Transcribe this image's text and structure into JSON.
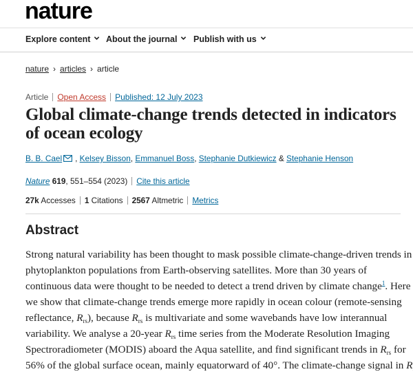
{
  "site": {
    "logo": "nature"
  },
  "nav": {
    "items": [
      {
        "label": "Explore content"
      },
      {
        "label": "About the journal"
      },
      {
        "label": "Publish with us"
      }
    ]
  },
  "breadcrumb": {
    "home": "nature",
    "section": "articles",
    "current": "article",
    "separator": "›"
  },
  "meta": {
    "type": "Article",
    "access": "Open Access",
    "published": "Published: 12 July 2023"
  },
  "title": "Global climate-change trends detected in indicators of ocean ecology",
  "authors": {
    "list": [
      "B. B. Cael",
      "Kelsey Bisson",
      "Emmanuel Boss",
      "Stephanie Dutkiewicz",
      "Stephanie Henson"
    ],
    "separator": ",",
    "conjunction": "&"
  },
  "citation": {
    "journal": "Nature",
    "volume": "619",
    "pages": ", 551–554 (2023)",
    "cite_link": "Cite this article"
  },
  "metrics": {
    "accesses_value": "27k",
    "accesses_label": "Accesses",
    "citations_value": "1",
    "citations_label": "Citations",
    "altmetric_value": "2567",
    "altmetric_label": "Altmetric",
    "metrics_link": "Metrics"
  },
  "abstract": {
    "heading": "Abstract",
    "line1": "Strong natural variability has been thought to mask possible climate-change-driven trends in",
    "line2": "phytoplankton populations from Earth-observing satellites. More than 30 years of",
    "line3a": "continuous data were thought to be needed to detect a trend driven by climate change",
    "ref1": "1",
    "line3b": ". Here",
    "line4": "we show that climate-change trends emerge more rapidly in ocean colour (remote-sensing",
    "line5a": "reflectance, ",
    "R": "R",
    "rs": "rs",
    "line5b": "), because ",
    "line5c": " is multivariate and some wavebands have low interannual",
    "line6a": "variability. We analyse a 20-year ",
    "line6b": " time series from the Moderate Resolution Imaging",
    "line7a": "Spectroradiometer (MODIS) aboard the Aqua satellite, and find significant trends in ",
    "line7b": " for",
    "line8a": "56% of the global surface ocean, mainly equatorward of 40°. The climate-change signal in "
  }
}
